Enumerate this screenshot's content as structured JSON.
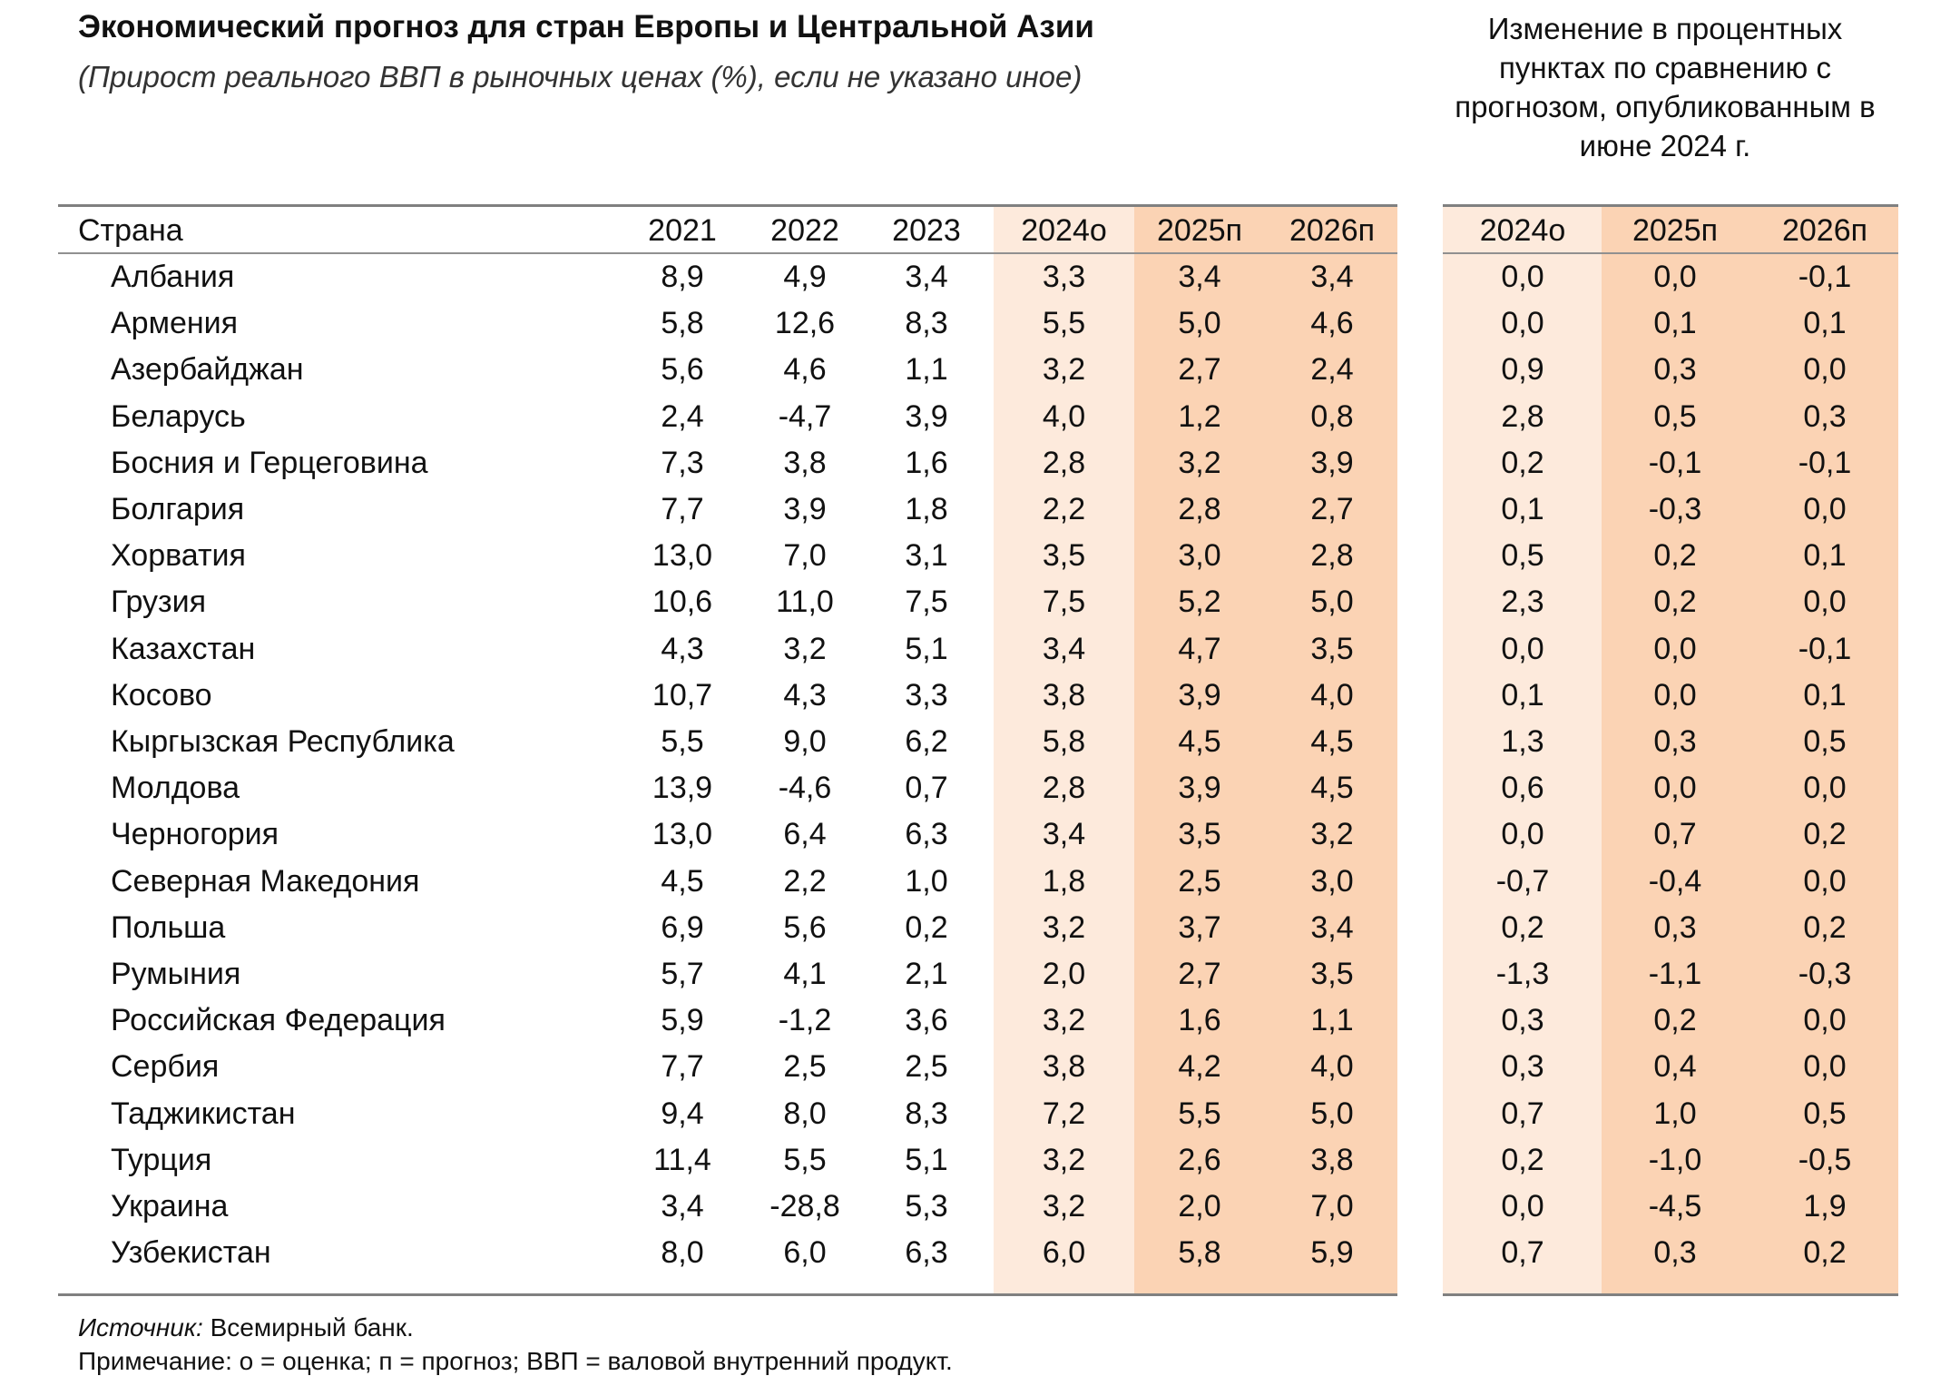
{
  "title": "Экономический прогноз для стран Европы и Центральной Азии",
  "subtitle": "(Прирост реального ВВП в рыночных ценах (%), если не указано иное)",
  "change_header": "Изменение в процентных пунктах по сравнению с прогнозом, опубликованным в июне 2024 г.",
  "columns": {
    "country": "Страна",
    "years": [
      "2021",
      "2022",
      "2023",
      "2024о",
      "2025п",
      "2026п"
    ],
    "changes": [
      "2024о",
      "2025п",
      "2026п"
    ]
  },
  "rows": [
    {
      "country": "Албания",
      "values": [
        "8,9",
        "4,9",
        "3,4",
        "3,3",
        "3,4",
        "3,4"
      ],
      "changes": [
        "0,0",
        "0,0",
        "-0,1"
      ]
    },
    {
      "country": "Армения",
      "values": [
        "5,8",
        "12,6",
        "8,3",
        "5,5",
        "5,0",
        "4,6"
      ],
      "changes": [
        "0,0",
        "0,1",
        "0,1"
      ]
    },
    {
      "country": "Азербайджан",
      "values": [
        "5,6",
        "4,6",
        "1,1",
        "3,2",
        "2,7",
        "2,4"
      ],
      "changes": [
        "0,9",
        "0,3",
        "0,0"
      ]
    },
    {
      "country": "Беларусь",
      "values": [
        "2,4",
        "-4,7",
        "3,9",
        "4,0",
        "1,2",
        "0,8"
      ],
      "changes": [
        "2,8",
        "0,5",
        "0,3"
      ]
    },
    {
      "country": "Босния и Герцеговина",
      "values": [
        "7,3",
        "3,8",
        "1,6",
        "2,8",
        "3,2",
        "3,9"
      ],
      "changes": [
        "0,2",
        "-0,1",
        "-0,1"
      ]
    },
    {
      "country": "Болгария",
      "values": [
        "7,7",
        "3,9",
        "1,8",
        "2,2",
        "2,8",
        "2,7"
      ],
      "changes": [
        "0,1",
        "-0,3",
        "0,0"
      ]
    },
    {
      "country": "Хорватия",
      "values": [
        "13,0",
        "7,0",
        "3,1",
        "3,5",
        "3,0",
        "2,8"
      ],
      "changes": [
        "0,5",
        "0,2",
        "0,1"
      ]
    },
    {
      "country": "Грузия",
      "values": [
        "10,6",
        "11,0",
        "7,5",
        "7,5",
        "5,2",
        "5,0"
      ],
      "changes": [
        "2,3",
        "0,2",
        "0,0"
      ]
    },
    {
      "country": "Казахстан",
      "values": [
        "4,3",
        "3,2",
        "5,1",
        "3,4",
        "4,7",
        "3,5"
      ],
      "changes": [
        "0,0",
        "0,0",
        "-0,1"
      ]
    },
    {
      "country": "Косово",
      "values": [
        "10,7",
        "4,3",
        "3,3",
        "3,8",
        "3,9",
        "4,0"
      ],
      "changes": [
        "0,1",
        "0,0",
        "0,1"
      ]
    },
    {
      "country": "Кыргызская Республика",
      "values": [
        "5,5",
        "9,0",
        "6,2",
        "5,8",
        "4,5",
        "4,5"
      ],
      "changes": [
        "1,3",
        "0,3",
        "0,5"
      ]
    },
    {
      "country": "Молдова",
      "values": [
        "13,9",
        "-4,6",
        "0,7",
        "2,8",
        "3,9",
        "4,5"
      ],
      "changes": [
        "0,6",
        "0,0",
        "0,0"
      ]
    },
    {
      "country": "Черногория",
      "values": [
        "13,0",
        "6,4",
        "6,3",
        "3,4",
        "3,5",
        "3,2"
      ],
      "changes": [
        "0,0",
        "0,7",
        "0,2"
      ]
    },
    {
      "country": "Северная Македония",
      "values": [
        "4,5",
        "2,2",
        "1,0",
        "1,8",
        "2,5",
        "3,0"
      ],
      "changes": [
        "-0,7",
        "-0,4",
        "0,0"
      ]
    },
    {
      "country": "Польша",
      "values": [
        "6,9",
        "5,6",
        "0,2",
        "3,2",
        "3,7",
        "3,4"
      ],
      "changes": [
        "0,2",
        "0,3",
        "0,2"
      ]
    },
    {
      "country": "Румыния",
      "values": [
        "5,7",
        "4,1",
        "2,1",
        "2,0",
        "2,7",
        "3,5"
      ],
      "changes": [
        "-1,3",
        "-1,1",
        "-0,3"
      ]
    },
    {
      "country": "Российская Федерация",
      "values": [
        "5,9",
        "-1,2",
        "3,6",
        "3,2",
        "1,6",
        "1,1"
      ],
      "changes": [
        "0,3",
        "0,2",
        "0,0"
      ]
    },
    {
      "country": "Сербия",
      "values": [
        "7,7",
        "2,5",
        "2,5",
        "3,8",
        "4,2",
        "4,0"
      ],
      "changes": [
        "0,3",
        "0,4",
        "0,0"
      ]
    },
    {
      "country": "Таджикистан",
      "values": [
        "9,4",
        "8,0",
        "8,3",
        "7,2",
        "5,5",
        "5,0"
      ],
      "changes": [
        "0,7",
        "1,0",
        "0,5"
      ]
    },
    {
      "country": "Турция",
      "values": [
        "11,4",
        "5,5",
        "5,1",
        "3,2",
        "2,6",
        "3,8"
      ],
      "changes": [
        "0,2",
        "-1,0",
        "-0,5"
      ]
    },
    {
      "country": "Украина",
      "values": [
        "3,4",
        "-28,8",
        "5,3",
        "3,2",
        "2,0",
        "7,0"
      ],
      "changes": [
        "0,0",
        "-4,5",
        "1,9"
      ]
    },
    {
      "country": "Узбекистан",
      "values": [
        "8,0",
        "6,0",
        "6,3",
        "6,0",
        "5,8",
        "5,9"
      ],
      "changes": [
        "0,7",
        "0,3",
        "0,2"
      ]
    }
  ],
  "footer": {
    "source_label": "Источник:",
    "source_value": " Всемирный банк.",
    "note": "Примечание: о = оценка; п = прогноз; ВВП = валовой внутренний продукт."
  },
  "colors": {
    "estimate_band": "#fdeadc",
    "forecast_band": "#fbd3b4",
    "rule": "#808080"
  }
}
